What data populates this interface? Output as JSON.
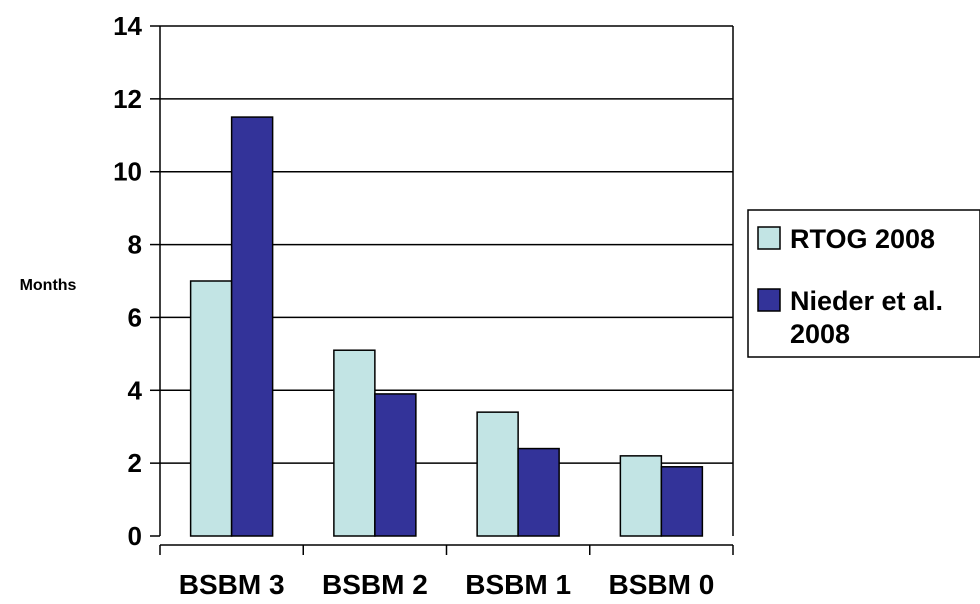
{
  "chart_data": {
    "type": "bar",
    "title": "",
    "xlabel": "",
    "ylabel": "Months",
    "ylim": [
      0,
      14
    ],
    "yticks": [
      0,
      2,
      4,
      6,
      8,
      10,
      12,
      14
    ],
    "grid": true,
    "legend_position": "right",
    "categories": [
      "BSBM 3",
      "BSBM 2",
      "BSBM 1",
      "BSBM 0"
    ],
    "series": [
      {
        "name": "RTOG 2008",
        "legend_lines": [
          "RTOG 2008"
        ],
        "color": "#c2e4e4",
        "values": [
          7.0,
          5.1,
          3.4,
          2.2
        ]
      },
      {
        "name": "Nieder et al. 2008",
        "legend_lines": [
          "Nieder et al.",
          "2008"
        ],
        "color": "#333399",
        "values": [
          11.5,
          3.9,
          2.4,
          1.9
        ]
      }
    ]
  }
}
